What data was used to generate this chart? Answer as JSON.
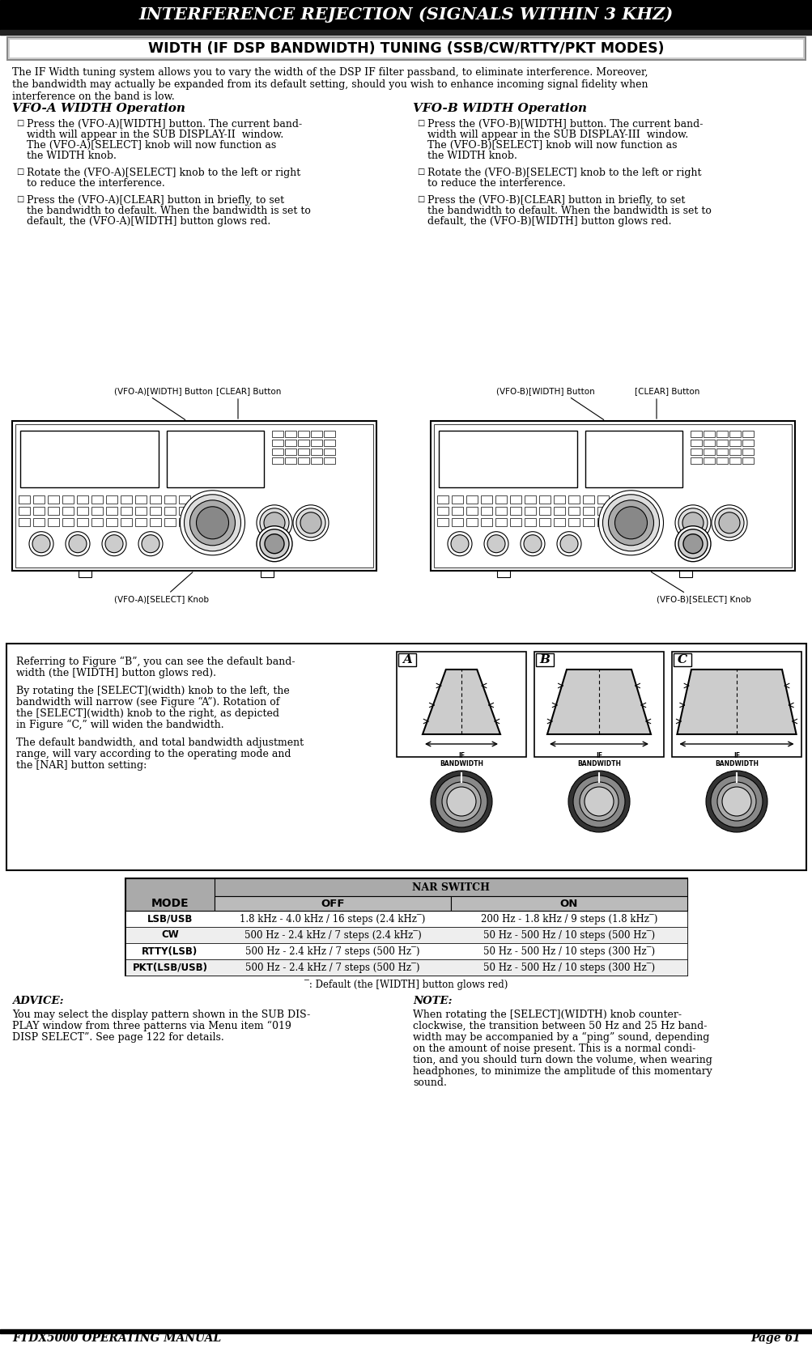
{
  "page_title": "INTERFERENCE REJECTION (SIGNALS WITHIN 3 KHZ)",
  "section_title": "WIDTH (IF DSP BANDWIDTH) TUNING (SSB/CW/RTTY/PKT MODES)",
  "intro_lines": [
    "The IF Width tuning system allows you to vary the width of the DSP IF filter passband, to eliminate interference. Moreover,",
    "the bandwidth may actually be expanded from its default setting, should you wish to enhance incoming signal fidelity when",
    "interference on the band is low."
  ],
  "vfo_a_title": "VFO-A WIDTH Operation",
  "vfo_a_bullets": [
    "Press the (VFO-A)[WIDTH] button. The current band-\nwidth will appear in the SUB DISPLAY-II  window.\nThe (VFO-A)[SELECT] knob will now function as\nthe WIDTH knob.",
    "Rotate the (VFO-A)[SELECT] knob to the left or right\nto reduce the interference.",
    "Press the (VFO-A)[CLEAR] button in briefly, to set\nthe bandwidth to default. When the bandwidth is set to\ndefault, the (VFO-A)[WIDTH] button glows red."
  ],
  "vfo_b_title": "VFO-B WIDTH Operation",
  "vfo_b_bullets": [
    "Press the (VFO-B)[WIDTH] button. The current band-\nwidth will appear in the SUB DISPLAY-III  window.\nThe (VFO-B)[SELECT] knob will now function as\nthe WIDTH knob.",
    "Rotate the (VFO-B)[SELECT] knob to the left or right\nto reduce the interference.",
    "Press the (VFO-B)[CLEAR] button in briefly, to set\nthe bandwidth to default. When the bandwidth is set to\ndefault, the (VFO-B)[WIDTH] button glows red."
  ],
  "label_vfo_a_width": "(VFO-A)[WIDTH] Button",
  "label_clear_a": "[CLEAR] Button",
  "label_select_a": "(VFO-A)[SELECT] Knob",
  "label_vfo_b_width": "(VFO-B)[WIDTH] Button",
  "label_clear_b": "[CLEAR] Button",
  "label_select_b": "(VFO-B)[SELECT] Knob",
  "middle_text_1": "Referring to Figure “B”, you can see the default band-\nwidth (the [WIDTH] button glows red).",
  "middle_text_2": "By rotating the [SELECT](width) knob to the left, the\nbandwidth will narrow (see Figure “A”). Rotation of\nthe [SELECT](width) knob to the right, as depicted\nin Figure “C,” will widen the bandwidth.",
  "middle_text_3": "The default bandwidth, and total bandwidth adjustment\nrange, will vary according to the operating mode and\nthe [NAR] button setting:",
  "table_header_mode": "MODE",
  "table_header_nar": "NAR SWITCH",
  "table_header_off": "OFF",
  "table_header_on": "ON",
  "table_rows": [
    [
      "LSB/USB",
      "1.8 kHz - 4.0 kHz / 16 steps (2.4 kHz‾)",
      "200 Hz - 1.8 kHz / 9 steps (1.8 kHz‾)"
    ],
    [
      "CW",
      "500 Hz - 2.4 kHz / 7 steps (2.4 kHz‾)",
      "50 Hz - 500 Hz / 10 steps (500 Hz‾)"
    ],
    [
      "RTTY(LSB)",
      "500 Hz - 2.4 kHz / 7 steps (500 Hz‾)",
      "50 Hz - 500 Hz / 10 steps (300 Hz‾)"
    ],
    [
      "PKT(LSB/USB)",
      "500 Hz - 2.4 kHz / 7 steps (500 Hz‾)",
      "50 Hz - 500 Hz / 10 steps (300 Hz‾)"
    ]
  ],
  "table_footnote": "‾: Default (the [WIDTH] button glows red)",
  "advice_title": "ADVICE:",
  "advice_lines": [
    "You may select the display pattern shown in the SUB DIS-",
    "PLAY window from three patterns via Menu item “019",
    "DISP SELECT”. See page 122 for details."
  ],
  "note_title": "NOTE:",
  "note_lines": [
    "When rotating the [SELECT](WIDTH) knob counter-",
    "clockwise, the transition between 50 Hz and 25 Hz band-",
    "width may be accompanied by a “ping” sound, depending",
    "on the amount of noise present. This is a normal condi-",
    "tion, and you should turn down the volume, when wearing",
    "headphones, to minimize the amplitude of this momentary",
    "sound."
  ],
  "footer_left": "FTDX5000 OPERATING MANUAL",
  "footer_right": "Page 61",
  "bg_color": "#ffffff"
}
